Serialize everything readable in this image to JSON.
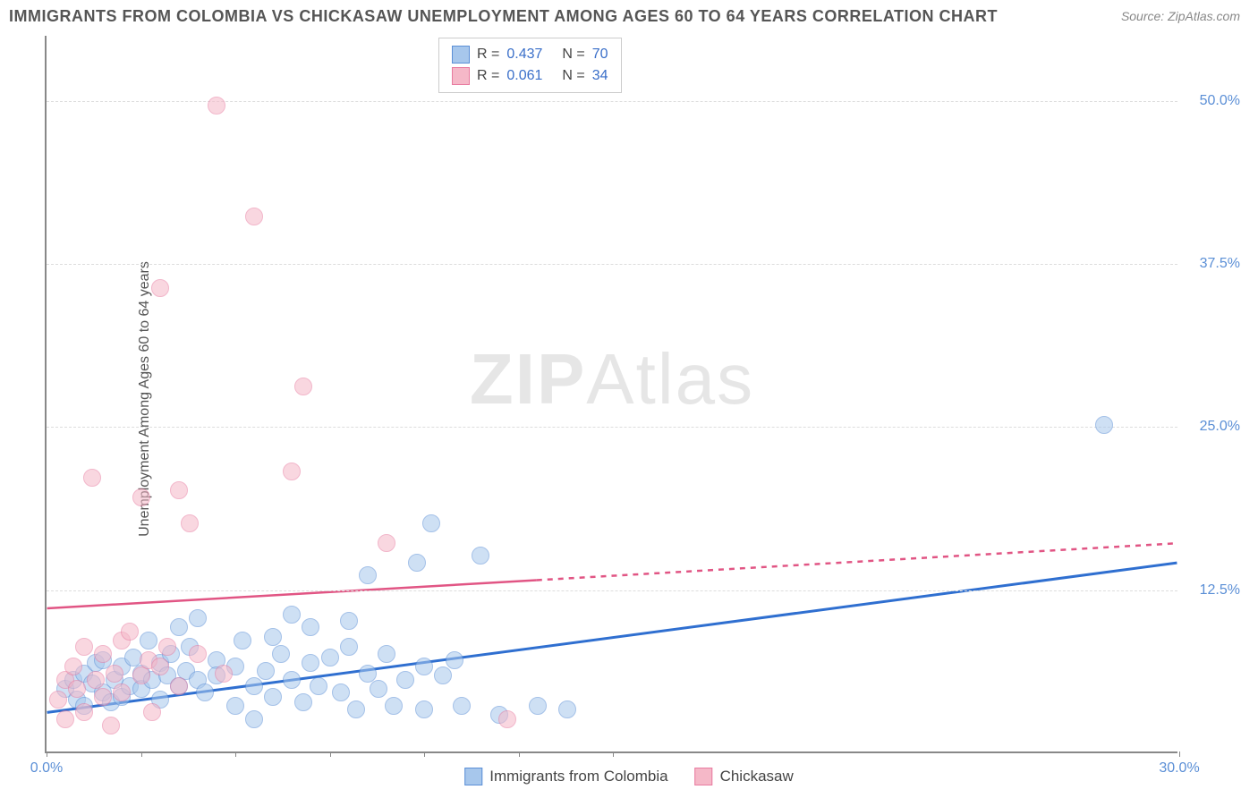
{
  "chart": {
    "type": "scatter",
    "title": "IMMIGRANTS FROM COLOMBIA VS CHICKASAW UNEMPLOYMENT AMONG AGES 60 TO 64 YEARS CORRELATION CHART",
    "source": "Source: ZipAtlas.com",
    "watermark_bold": "ZIP",
    "watermark_light": "Atlas",
    "ylabel": "Unemployment Among Ages 60 to 64 years",
    "title_fontsize": 18,
    "title_color": "#555555",
    "label_fontsize": 16,
    "tick_color": "#5b8fd6",
    "background_color": "#ffffff",
    "grid_color": "#dddddd",
    "axis_color": "#888888",
    "xlim": [
      0,
      30
    ],
    "ylim": [
      0,
      55
    ],
    "xticks": [
      0,
      2.5,
      5,
      7.5,
      10,
      12.5,
      15,
      30
    ],
    "xtick_labels": {
      "0": "0.0%",
      "30": "30.0%"
    },
    "yticks": [
      12.5,
      25.0,
      37.5,
      50.0
    ],
    "ytick_labels": [
      "12.5%",
      "25.0%",
      "37.5%",
      "50.0%"
    ],
    "point_radius": 10,
    "point_opacity": 0.55,
    "series": [
      {
        "name": "Immigrants from Colombia",
        "color_fill": "#a7c7ec",
        "color_stroke": "#5b8fd6",
        "r": "0.437",
        "n": "70",
        "trend": {
          "x1": 0,
          "y1": 3.0,
          "x2": 30,
          "y2": 14.5,
          "color": "#2f6fd0",
          "width": 3,
          "dash_after_x": null
        },
        "points": [
          [
            0.5,
            4.8
          ],
          [
            0.7,
            5.5
          ],
          [
            0.8,
            4.0
          ],
          [
            1.0,
            6.0
          ],
          [
            1.0,
            3.5
          ],
          [
            1.2,
            5.2
          ],
          [
            1.3,
            6.8
          ],
          [
            1.5,
            4.5
          ],
          [
            1.5,
            7.0
          ],
          [
            1.7,
            3.8
          ],
          [
            1.8,
            5.5
          ],
          [
            2.0,
            6.5
          ],
          [
            2.0,
            4.2
          ],
          [
            2.2,
            5.0
          ],
          [
            2.3,
            7.2
          ],
          [
            2.5,
            4.8
          ],
          [
            2.5,
            6.0
          ],
          [
            2.7,
            8.5
          ],
          [
            2.8,
            5.5
          ],
          [
            3.0,
            6.8
          ],
          [
            3.0,
            4.0
          ],
          [
            3.2,
            5.8
          ],
          [
            3.3,
            7.5
          ],
          [
            3.5,
            9.5
          ],
          [
            3.5,
            5.0
          ],
          [
            3.7,
            6.2
          ],
          [
            3.8,
            8.0
          ],
          [
            4.0,
            5.5
          ],
          [
            4.0,
            10.2
          ],
          [
            4.2,
            4.5
          ],
          [
            4.5,
            7.0
          ],
          [
            4.5,
            5.8
          ],
          [
            5.0,
            6.5
          ],
          [
            5.0,
            3.5
          ],
          [
            5.2,
            8.5
          ],
          [
            5.5,
            5.0
          ],
          [
            5.5,
            2.5
          ],
          [
            5.8,
            6.2
          ],
          [
            6.0,
            8.8
          ],
          [
            6.0,
            4.2
          ],
          [
            6.2,
            7.5
          ],
          [
            6.5,
            10.5
          ],
          [
            6.5,
            5.5
          ],
          [
            6.8,
            3.8
          ],
          [
            7.0,
            6.8
          ],
          [
            7.0,
            9.5
          ],
          [
            7.2,
            5.0
          ],
          [
            7.5,
            7.2
          ],
          [
            7.8,
            4.5
          ],
          [
            8.0,
            8.0
          ],
          [
            8.0,
            10.0
          ],
          [
            8.2,
            3.2
          ],
          [
            8.5,
            13.5
          ],
          [
            8.5,
            6.0
          ],
          [
            8.8,
            4.8
          ],
          [
            9.0,
            7.5
          ],
          [
            9.2,
            3.5
          ],
          [
            9.5,
            5.5
          ],
          [
            9.8,
            14.5
          ],
          [
            10.0,
            6.5
          ],
          [
            10.0,
            3.2
          ],
          [
            10.2,
            17.5
          ],
          [
            10.5,
            5.8
          ],
          [
            10.8,
            7.0
          ],
          [
            11.0,
            3.5
          ],
          [
            11.5,
            15.0
          ],
          [
            12.0,
            2.8
          ],
          [
            13.0,
            3.5
          ],
          [
            13.8,
            3.2
          ],
          [
            28.0,
            25.0
          ]
        ]
      },
      {
        "name": "Chickasaw",
        "color_fill": "#f5b8c8",
        "color_stroke": "#e87ba0",
        "r": "0.061",
        "n": "34",
        "trend": {
          "x1": 0,
          "y1": 11.0,
          "x2": 30,
          "y2": 16.0,
          "color": "#e15584",
          "width": 2.5,
          "dash_after_x": 13
        },
        "points": [
          [
            0.3,
            4.0
          ],
          [
            0.5,
            5.5
          ],
          [
            0.5,
            2.5
          ],
          [
            0.7,
            6.5
          ],
          [
            0.8,
            4.8
          ],
          [
            1.0,
            8.0
          ],
          [
            1.0,
            3.0
          ],
          [
            1.2,
            21.0
          ],
          [
            1.3,
            5.5
          ],
          [
            1.5,
            7.5
          ],
          [
            1.5,
            4.2
          ],
          [
            1.7,
            2.0
          ],
          [
            1.8,
            6.0
          ],
          [
            2.0,
            8.5
          ],
          [
            2.0,
            4.5
          ],
          [
            2.2,
            9.2
          ],
          [
            2.5,
            5.8
          ],
          [
            2.5,
            19.5
          ],
          [
            2.7,
            7.0
          ],
          [
            2.8,
            3.0
          ],
          [
            3.0,
            35.5
          ],
          [
            3.0,
            6.5
          ],
          [
            3.2,
            8.0
          ],
          [
            3.5,
            20.0
          ],
          [
            3.5,
            5.0
          ],
          [
            3.8,
            17.5
          ],
          [
            4.0,
            7.5
          ],
          [
            4.5,
            49.5
          ],
          [
            4.7,
            6.0
          ],
          [
            5.5,
            41.0
          ],
          [
            6.5,
            21.5
          ],
          [
            6.8,
            28.0
          ],
          [
            9.0,
            16.0
          ],
          [
            12.2,
            2.5
          ]
        ]
      }
    ],
    "legend_bottom": [
      {
        "label": "Immigrants from Colombia",
        "fill": "#a7c7ec",
        "stroke": "#5b8fd6"
      },
      {
        "label": "Chickasaw",
        "fill": "#f5b8c8",
        "stroke": "#e87ba0"
      }
    ]
  }
}
